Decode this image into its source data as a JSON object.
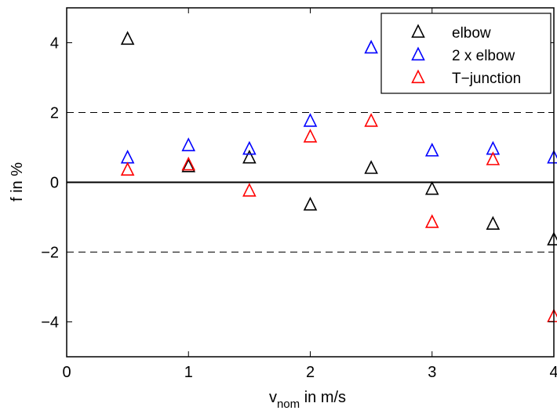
{
  "chart_data": {
    "type": "scatter",
    "xlabel_main": "v",
    "xlabel_sub": "nom",
    "xlabel_rest": " in m/s",
    "ylabel": "f in %",
    "xlim": [
      0,
      4
    ],
    "ylim": [
      -5,
      5
    ],
    "xticks": [
      0,
      1,
      2,
      3,
      4
    ],
    "xtick_labels": [
      "0",
      "1",
      "2",
      "3",
      "4"
    ],
    "yticks": [
      -4,
      -2,
      0,
      2,
      4
    ],
    "ytick_labels": [
      "−4",
      "−2",
      "0",
      "2",
      "4"
    ],
    "grid": false,
    "reference_lines": {
      "solid": [
        0
      ],
      "dashed": [
        2,
        -2
      ]
    },
    "legend_position": "top-right",
    "marker": "triangle-open",
    "series": [
      {
        "name": "elbow",
        "color": "#000000",
        "x": [
          0.5,
          1.0,
          1.5,
          2.0,
          2.5,
          3.0,
          3.5,
          4.0
        ],
        "y": [
          4.1,
          0.45,
          0.7,
          -0.65,
          0.4,
          -0.2,
          -1.2,
          -1.65
        ]
      },
      {
        "name": "2 x elbow",
        "color": "#0000ff",
        "x": [
          0.5,
          1.0,
          1.5,
          2.0,
          2.5,
          3.0,
          3.5,
          4.0
        ],
        "y": [
          0.7,
          1.05,
          0.95,
          1.75,
          3.85,
          0.9,
          0.95,
          0.7
        ]
      },
      {
        "name": "T−junction",
        "color": "#ff0000",
        "x": [
          0.5,
          1.0,
          1.5,
          2.0,
          2.5,
          3.0,
          3.5,
          4.0
        ],
        "y": [
          0.35,
          0.5,
          -0.25,
          1.3,
          1.75,
          -1.15,
          0.65,
          -3.85
        ]
      }
    ]
  }
}
